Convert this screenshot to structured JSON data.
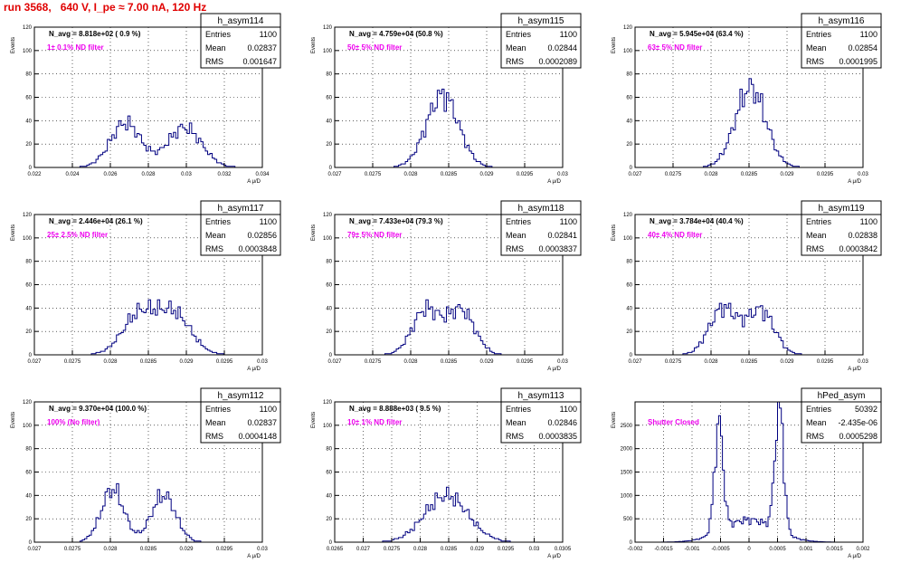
{
  "page": {
    "title": "run 3568,   640 V, I_pe ≈ 7.00 nA, 120 Hz"
  },
  "chart_data": [
    {
      "type": "histogram",
      "name": "h_asym114",
      "stats": [
        {
          "label": "Entries",
          "value": "1100"
        },
        {
          "label": "Mean",
          "value": "0.02837"
        },
        {
          "label": "RMS",
          "value": "0.001647"
        }
      ],
      "navg": "N_avg = 8.818e+02 ( 0.9 %)",
      "filter": "1± 0.1% ND filter",
      "ylabel": "Events",
      "xlabel": "A μ/D",
      "xlim": [
        0.022,
        0.034
      ],
      "ylim": [
        0,
        120
      ],
      "xticks": [
        "0.022",
        "0.024",
        "0.026",
        "0.028",
        "0.03",
        "0.032",
        "0.034"
      ],
      "yticks": [
        "0",
        "20",
        "40",
        "60",
        "80",
        "100",
        "120"
      ],
      "peaks": [
        {
          "mu": 0.0268,
          "sigma": 0.0008,
          "amp": 38
        },
        {
          "mu": 0.0299,
          "sigma": 0.0009,
          "amp": 34
        }
      ],
      "bins": 100
    },
    {
      "type": "histogram",
      "name": "h_asym115",
      "stats": [
        {
          "label": "Entries",
          "value": "1100"
        },
        {
          "label": "Mean",
          "value": "0.02844"
        },
        {
          "label": "RMS",
          "value": "0.0002089"
        }
      ],
      "navg": "N_avg = 4.759e+04 (50.8 %)",
      "filter": "50± 5% ND filter",
      "ylabel": "Events",
      "xlabel": "A μ/D",
      "xlim": [
        0.027,
        0.03
      ],
      "ylim": [
        0,
        120
      ],
      "xticks": [
        "0.027",
        "0.0275",
        "0.028",
        "0.0285",
        "0.029",
        "0.0295",
        "0.03"
      ],
      "yticks": [
        "0",
        "20",
        "40",
        "60",
        "80",
        "100",
        "120"
      ],
      "peaks": [
        {
          "mu": 0.02842,
          "sigma": 0.00021,
          "amp": 62
        }
      ],
      "bins": 100
    },
    {
      "type": "histogram",
      "name": "h_asym116",
      "stats": [
        {
          "label": "Entries",
          "value": "1100"
        },
        {
          "label": "Mean",
          "value": "0.02854"
        },
        {
          "label": "RMS",
          "value": "0.0001995"
        }
      ],
      "navg": "N_avg = 5.945e+04 (63.4 %)",
      "filter": "63± 5% ND filter",
      "ylabel": "Events",
      "xlabel": "A μ/D",
      "xlim": [
        0.027,
        0.03
      ],
      "ylim": [
        0,
        120
      ],
      "xticks": [
        "0.027",
        "0.0275",
        "0.028",
        "0.0285",
        "0.029",
        "0.0295",
        "0.03"
      ],
      "yticks": [
        "0",
        "20",
        "40",
        "60",
        "80",
        "100",
        "120"
      ],
      "peaks": [
        {
          "mu": 0.02852,
          "sigma": 0.0002,
          "amp": 68
        }
      ],
      "bins": 100
    },
    {
      "type": "histogram",
      "name": "h_asym117",
      "stats": [
        {
          "label": "Entries",
          "value": "1100"
        },
        {
          "label": "Mean",
          "value": "0.02856"
        },
        {
          "label": "RMS",
          "value": "0.0003848"
        }
      ],
      "navg": "N_avg = 2.446e+04 (26.1 %)",
      "filter": "25± 2.5% ND filter",
      "ylabel": "Events",
      "xlabel": "A μ/D",
      "xlim": [
        0.027,
        0.03
      ],
      "ylim": [
        0,
        120
      ],
      "xticks": [
        "0.027",
        "0.0275",
        "0.028",
        "0.0285",
        "0.029",
        "0.0295",
        "0.03"
      ],
      "yticks": [
        "0",
        "20",
        "40",
        "60",
        "80",
        "100",
        "120"
      ],
      "peaks": [
        {
          "mu": 0.02838,
          "sigma": 0.00022,
          "amp": 34
        },
        {
          "mu": 0.02884,
          "sigma": 0.00022,
          "amp": 34
        }
      ],
      "bins": 100
    },
    {
      "type": "histogram",
      "name": "h_asym118",
      "stats": [
        {
          "label": "Entries",
          "value": "1100"
        },
        {
          "label": "Mean",
          "value": "0.02841"
        },
        {
          "label": "RMS",
          "value": "0.0003837"
        }
      ],
      "navg": "N_avg = 7.433e+04 (79.3 %)",
      "filter": "79± 5% ND filter",
      "ylabel": "Events",
      "xlabel": "A μ/D",
      "xlim": [
        0.027,
        0.03
      ],
      "ylim": [
        0,
        120
      ],
      "xticks": [
        "0.027",
        "0.0275",
        "0.028",
        "0.0285",
        "0.029",
        "0.0295",
        "0.03"
      ],
      "yticks": [
        "0",
        "20",
        "40",
        "60",
        "80",
        "100",
        "120"
      ],
      "peaks": [
        {
          "mu": 0.0282,
          "sigma": 0.00018,
          "amp": 38
        },
        {
          "mu": 0.02866,
          "sigma": 0.00018,
          "amp": 38
        }
      ],
      "bins": 100
    },
    {
      "type": "histogram",
      "name": "h_asym119",
      "stats": [
        {
          "label": "Entries",
          "value": "1100"
        },
        {
          "label": "Mean",
          "value": "0.02838"
        },
        {
          "label": "RMS",
          "value": "0.0003842"
        }
      ],
      "navg": "N_avg = 3.784e+04 (40.4 %)",
      "filter": "40± 4% ND filter",
      "ylabel": "Events",
      "xlabel": "A μ/D",
      "xlim": [
        0.027,
        0.03
      ],
      "ylim": [
        0,
        120
      ],
      "xticks": [
        "0.027",
        "0.0275",
        "0.028",
        "0.0285",
        "0.029",
        "0.0295",
        "0.03"
      ],
      "yticks": [
        "0",
        "20",
        "40",
        "60",
        "80",
        "100",
        "120"
      ],
      "peaks": [
        {
          "mu": 0.02816,
          "sigma": 0.00018,
          "amp": 40
        },
        {
          "mu": 0.02865,
          "sigma": 0.00018,
          "amp": 38
        }
      ],
      "bins": 100
    },
    {
      "type": "histogram",
      "name": "h_asym112",
      "stats": [
        {
          "label": "Entries",
          "value": "1100"
        },
        {
          "label": "Mean",
          "value": "0.02837"
        },
        {
          "label": "RMS",
          "value": "0.0004148"
        }
      ],
      "navg": "N_avg = 9.370e+04 (100.0 %)",
      "filter": "100% (No filter)",
      "ylabel": "Events",
      "xlabel": "A μ/D",
      "xlim": [
        0.027,
        0.03
      ],
      "ylim": [
        0,
        120
      ],
      "xticks": [
        "0.027",
        "0.0275",
        "0.028",
        "0.0285",
        "0.029",
        "0.0295",
        "0.03"
      ],
      "yticks": [
        "0",
        "20",
        "40",
        "60",
        "80",
        "100",
        "120"
      ],
      "peaks": [
        {
          "mu": 0.02803,
          "sigma": 0.00015,
          "amp": 45
        },
        {
          "mu": 0.0287,
          "sigma": 0.00016,
          "amp": 40
        }
      ],
      "bins": 100
    },
    {
      "type": "histogram",
      "name": "h_asym113",
      "stats": [
        {
          "label": "Entries",
          "value": "1100"
        },
        {
          "label": "Mean",
          "value": "0.02846"
        },
        {
          "label": "RMS",
          "value": "0.0003835"
        }
      ],
      "navg": "N_avg = 8.888e+03 ( 9.5 %)",
      "filter": "10± 1% ND filter",
      "ylabel": "Events",
      "xlabel": "A μ/D",
      "xlim": [
        0.0265,
        0.0305
      ],
      "ylim": [
        0,
        120
      ],
      "xticks": [
        "0.0265",
        "0.027",
        "0.0275",
        "0.028",
        "0.0285",
        "0.029",
        "0.0295",
        "0.03",
        "0.0305"
      ],
      "yticks": [
        "0",
        "20",
        "40",
        "60",
        "80",
        "100",
        "120"
      ],
      "peaks": [
        {
          "mu": 0.02846,
          "sigma": 0.00038,
          "amp": 40
        }
      ],
      "bins": 100
    },
    {
      "type": "histogram",
      "name": "hPed_asym",
      "stats": [
        {
          "label": "Entries",
          "value": "50392"
        },
        {
          "label": "Mean",
          "value": "-2.435e-06"
        },
        {
          "label": "RMS",
          "value": "0.0005298"
        }
      ],
      "navg": "",
      "filter": "Shutter Closed",
      "ylabel": "Events",
      "xlabel": "A μ/D",
      "xlim": [
        -0.002,
        0.002
      ],
      "ylim": [
        0,
        3000
      ],
      "xticks": [
        "-0.002",
        "-0.0015",
        "-0.001",
        "-0.0005",
        "0",
        "0.0005",
        "0.001",
        "0.0015",
        "0.002"
      ],
      "yticks": [
        "0",
        "500",
        "1000",
        "1500",
        "2000",
        "2500"
      ],
      "peaks": [
        {
          "mu": -0.00053,
          "sigma": 7.5e-05,
          "amp": 2300
        },
        {
          "mu": 0.00053,
          "sigma": 7.5e-05,
          "amp": 2750
        },
        {
          "mu": 0.0,
          "sigma": 0.00045,
          "amp": 480
        }
      ],
      "bins": 120
    }
  ]
}
